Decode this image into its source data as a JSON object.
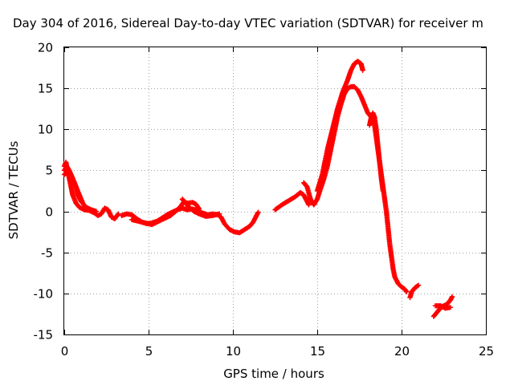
{
  "chart_data": {
    "type": "scatter",
    "title": "Day 304 of 2016, Sidereal Day-to-day VTEC variation (SDTVAR) for receiver m",
    "xlabel": "GPS time / hours",
    "ylabel": "SDTVAR / TECUs",
    "xlim": [
      0,
      25
    ],
    "ylim": [
      -15,
      20
    ],
    "xticks": [
      0,
      5,
      10,
      15,
      20,
      25
    ],
    "yticks": [
      -15,
      -10,
      -5,
      0,
      5,
      10,
      15,
      20
    ],
    "xtick_labels": [
      "0",
      "5",
      "10",
      "15",
      "20",
      "25"
    ],
    "ytick_labels": [
      "-15",
      "-10",
      "-5",
      "0",
      "5",
      "10",
      "15",
      "20"
    ],
    "grid": true,
    "marker": "+",
    "color": "#ff0000",
    "series": [
      {
        "name": "SDTVAR",
        "segments": [
          [
            [
              0.0,
              5.5
            ],
            [
              0.1,
              6.0
            ],
            [
              0.2,
              5.0
            ],
            [
              0.3,
              4.0
            ],
            [
              0.4,
              3.0
            ],
            [
              0.5,
              2.0
            ],
            [
              0.7,
              1.0
            ],
            [
              0.9,
              0.5
            ],
            [
              1.2,
              0.2
            ],
            [
              1.5,
              0.1
            ],
            [
              1.8,
              -0.2
            ],
            [
              2.0,
              -0.5
            ],
            [
              2.2,
              -0.3
            ],
            [
              2.4,
              0.4
            ],
            [
              2.6,
              0.2
            ],
            [
              2.8,
              -0.7
            ],
            [
              3.0,
              -0.9
            ],
            [
              3.2,
              -0.3
            ]
          ],
          [
            [
              0.0,
              5.0
            ],
            [
              0.15,
              5.5
            ],
            [
              0.3,
              5.0
            ],
            [
              0.5,
              4.0
            ],
            [
              0.7,
              3.0
            ],
            [
              0.8,
              2.0
            ],
            [
              1.0,
              1.2
            ],
            [
              1.3,
              0.5
            ],
            [
              1.6,
              0.2
            ],
            [
              1.9,
              0.0
            ]
          ],
          [
            [
              0.0,
              4.5
            ],
            [
              0.2,
              4.8
            ],
            [
              0.4,
              4.5
            ],
            [
              0.6,
              3.5
            ],
            [
              0.8,
              2.5
            ],
            [
              1.0,
              1.5
            ],
            [
              1.1,
              1.0
            ]
          ],
          [
            [
              3.4,
              -0.5
            ],
            [
              3.7,
              -0.3
            ],
            [
              4.0,
              -0.4
            ],
            [
              4.3,
              -0.9
            ],
            [
              4.6,
              -1.3
            ],
            [
              4.9,
              -1.5
            ],
            [
              5.2,
              -1.4
            ],
            [
              5.5,
              -1.2
            ],
            [
              5.8,
              -0.8
            ],
            [
              6.1,
              -0.4
            ],
            [
              6.4,
              -0.1
            ],
            [
              6.7,
              0.2
            ],
            [
              7.0,
              0.4
            ],
            [
              7.3,
              0.2
            ],
            [
              7.6,
              0.3
            ],
            [
              7.9,
              0.1
            ],
            [
              8.2,
              -0.2
            ],
            [
              8.5,
              -0.4
            ],
            [
              8.8,
              -0.3
            ],
            [
              9.1,
              -0.4
            ],
            [
              9.3,
              -0.7
            ],
            [
              9.5,
              -1.5
            ],
            [
              9.8,
              -2.2
            ],
            [
              10.1,
              -2.5
            ],
            [
              10.4,
              -2.6
            ],
            [
              10.7,
              -2.2
            ],
            [
              11.0,
              -1.8
            ],
            [
              11.2,
              -1.3
            ],
            [
              11.4,
              -0.5
            ],
            [
              11.5,
              -0.1
            ]
          ],
          [
            [
              4.0,
              -1.0
            ],
            [
              4.4,
              -1.2
            ],
            [
              4.8,
              -1.4
            ],
            [
              5.2,
              -1.6
            ],
            [
              5.6,
              -1.2
            ],
            [
              6.0,
              -0.8
            ],
            [
              6.3,
              -0.5
            ],
            [
              6.6,
              0.0
            ],
            [
              6.9,
              0.6
            ],
            [
              7.1,
              1.2
            ],
            [
              7.3,
              1.0
            ],
            [
              7.6,
              1.1
            ],
            [
              7.8,
              0.9
            ],
            [
              8.0,
              0.3
            ]
          ],
          [
            [
              7.0,
              1.5
            ],
            [
              7.2,
              1.0
            ],
            [
              7.4,
              0.5
            ],
            [
              7.7,
              0.0
            ],
            [
              8.0,
              -0.3
            ],
            [
              8.4,
              -0.6
            ],
            [
              8.8,
              -0.5
            ],
            [
              9.2,
              -0.3
            ]
          ],
          [
            [
              12.5,
              0.2
            ],
            [
              12.9,
              0.8
            ],
            [
              13.3,
              1.3
            ],
            [
              13.7,
              1.8
            ],
            [
              14.0,
              2.3
            ],
            [
              14.2,
              2.0
            ],
            [
              14.4,
              1.2
            ],
            [
              14.5,
              0.8
            ]
          ],
          [
            [
              14.2,
              3.5
            ],
            [
              14.4,
              3.0
            ],
            [
              14.6,
              1.5
            ],
            [
              14.8,
              0.8
            ],
            [
              15.0,
              1.5
            ],
            [
              15.2,
              2.8
            ],
            [
              15.4,
              4.0
            ],
            [
              15.6,
              5.5
            ],
            [
              15.8,
              7.5
            ],
            [
              16.0,
              9.5
            ],
            [
              16.2,
              11.5
            ],
            [
              16.4,
              13.0
            ],
            [
              16.6,
              14.3
            ],
            [
              16.8,
              15.0
            ],
            [
              17.0,
              15.2
            ],
            [
              17.2,
              15.2
            ],
            [
              17.4,
              14.8
            ],
            [
              17.6,
              14.0
            ],
            [
              17.8,
              13.0
            ],
            [
              18.0,
              12.0
            ],
            [
              18.2,
              11.5
            ],
            [
              18.4,
              10.5
            ],
            [
              18.5,
              9.0
            ],
            [
              18.6,
              7.5
            ],
            [
              18.7,
              6.0
            ],
            [
              18.8,
              4.5
            ],
            [
              18.9,
              3.0
            ],
            [
              19.0,
              1.5
            ],
            [
              19.1,
              0.0
            ],
            [
              19.2,
              -2.0
            ],
            [
              19.3,
              -4.0
            ],
            [
              19.4,
              -5.5
            ],
            [
              19.5,
              -7.0
            ],
            [
              19.6,
              -8.0
            ],
            [
              19.8,
              -8.8
            ],
            [
              20.0,
              -9.2
            ],
            [
              20.2,
              -9.5
            ],
            [
              20.3,
              -9.8
            ]
          ],
          [
            [
              15.0,
              2.5
            ],
            [
              15.3,
              4.5
            ],
            [
              15.6,
              7.5
            ],
            [
              15.9,
              10.0
            ],
            [
              16.2,
              12.5
            ],
            [
              16.5,
              14.5
            ],
            [
              16.8,
              16.0
            ],
            [
              17.0,
              17.2
            ],
            [
              17.2,
              18.0
            ],
            [
              17.4,
              18.3
            ],
            [
              17.6,
              18.0
            ],
            [
              17.7,
              17.2
            ]
          ],
          [
            [
              18.1,
              10.5
            ],
            [
              18.2,
              11.5
            ],
            [
              18.3,
              12.0
            ],
            [
              18.4,
              11.5
            ],
            [
              18.5,
              10.0
            ],
            [
              18.6,
              8.0
            ],
            [
              18.7,
              6.0
            ],
            [
              18.8,
              4.0
            ],
            [
              18.9,
              2.5
            ]
          ],
          [
            [
              20.5,
              -10.5
            ],
            [
              20.6,
              -9.8
            ],
            [
              20.8,
              -9.3
            ],
            [
              21.0,
              -9.0
            ]
          ],
          [
            [
              21.9,
              -12.8
            ],
            [
              22.1,
              -12.3
            ],
            [
              22.3,
              -11.8
            ],
            [
              22.5,
              -11.5
            ],
            [
              22.7,
              -11.3
            ],
            [
              22.9,
              -10.8
            ],
            [
              23.0,
              -10.4
            ]
          ],
          [
            [
              22.0,
              -11.5
            ],
            [
              22.3,
              -11.5
            ],
            [
              22.6,
              -11.8
            ],
            [
              22.9,
              -11.7
            ]
          ]
        ]
      }
    ]
  }
}
